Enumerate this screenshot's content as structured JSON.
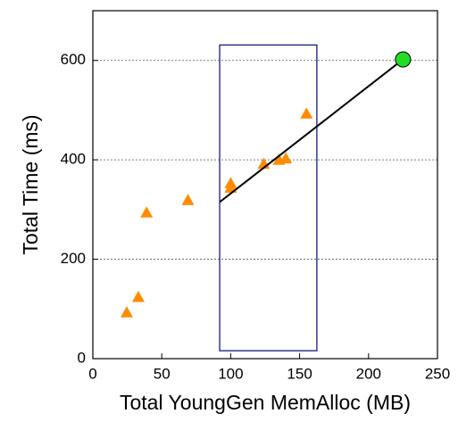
{
  "chart_data": {
    "type": "scatter",
    "x_label": "Total YoungGen MemAlloc (MB)",
    "y_label": "Total Time (ms)",
    "xlim": [
      0,
      250
    ],
    "xticks": [
      0,
      50,
      100,
      150,
      200,
      250
    ],
    "ylim": [
      0,
      700
    ],
    "yticks": [
      0,
      200,
      400,
      600
    ],
    "grid": true,
    "series": [
      {
        "color": "#ff8c00",
        "marker": "triangle",
        "x": [
          24.6,
          33,
          39,
          69,
          100,
          100,
          124,
          135,
          140,
          155
        ],
        "values": [
          93,
          124,
          294,
          319,
          353,
          344,
          392,
          400,
          403,
          493
        ]
      }
    ],
    "fit_line": {
      "color": "#000000",
      "x": [
        92,
        225
      ],
      "values": [
        315,
        602
      ]
    },
    "highlight": {
      "color": "#22dd22",
      "x": 225,
      "value": 602
    },
    "box": {
      "color": "#1a1a7a",
      "xlim": [
        92,
        162.5
      ],
      "ylim": [
        16,
        631
      ]
    }
  }
}
